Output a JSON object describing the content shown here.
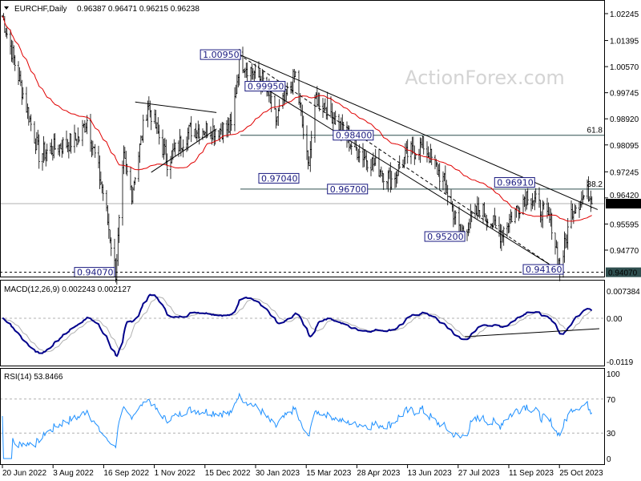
{
  "header": {
    "symbol": "EURCHF,Daily",
    "ohlc": "0.96387 0.96471 0.96215 0.96238"
  },
  "watermark": "ActionForex.com",
  "chart_data": {
    "type": "candlestick-ohlc-bars",
    "symbol": "EURCHF",
    "timeframe": "Daily",
    "last": {
      "open": 0.96387,
      "high": 0.96471,
      "low": 0.96215,
      "close": 0.96238
    },
    "price_axis_ticks": [
      "1.02245",
      "1.01395",
      "1.00570",
      "0.99745",
      "0.98920",
      "0.98095",
      "0.97245",
      "0.96420",
      "0.95595",
      "0.94770"
    ],
    "current_price_label": "0.96238",
    "support_price_label": "0.94070",
    "time_axis_ticks": [
      "20 Jun 2022",
      "3 Aug 2022",
      "16 Sep 2022",
      "1 Nov 2022",
      "15 Dec 2022",
      "30 Jan 2023",
      "15 Mar 2023",
      "28 Apr 2023",
      "13 Jun 2023",
      "27 Jul 2023",
      "11 Sep 2023",
      "25 Oct 2023"
    ],
    "price_path": [
      [
        "2022-06-20",
        1.0217
      ],
      [
        "2022-07-22",
        0.978
      ],
      [
        "2022-08-26",
        0.983
      ],
      [
        "2022-09-02",
        0.989
      ],
      [
        "2022-09-16",
        0.966
      ],
      [
        "2022-09-27",
        0.9407
      ],
      [
        "2022-10-04",
        0.976
      ],
      [
        "2022-10-11",
        0.966
      ],
      [
        "2022-10-25",
        0.994
      ],
      [
        "2022-11-11",
        0.976
      ],
      [
        "2022-12-02",
        0.986
      ],
      [
        "2023-01-06",
        0.986
      ],
      [
        "2023-01-13",
        1.008
      ],
      [
        "2023-02-03",
        1.001
      ],
      [
        "2023-02-14",
        0.989
      ],
      [
        "2023-03-03",
        1.003
      ],
      [
        "2023-03-14",
        0.974
      ],
      [
        "2023-03-21",
        0.996
      ],
      [
        "2023-03-31",
        0.993
      ],
      [
        "2023-04-21",
        0.981
      ],
      [
        "2023-05-26",
        0.97
      ],
      [
        "2023-06-09",
        0.978
      ],
      [
        "2023-06-23",
        0.981
      ],
      [
        "2023-07-11",
        0.969
      ],
      [
        "2023-07-25",
        0.953
      ],
      [
        "2023-08-11",
        0.961
      ],
      [
        "2023-08-29",
        0.953
      ],
      [
        "2023-09-22",
        0.966
      ],
      [
        "2023-10-13",
        0.956
      ],
      [
        "2023-10-20",
        0.9416
      ],
      [
        "2023-10-31",
        0.961
      ],
      [
        "2023-11-14",
        0.966
      ],
      [
        "2023-11-17",
        0.96238
      ]
    ],
    "moving_average": {
      "color": "#e00000"
    },
    "annotations": [
      {
        "text": "1.00950",
        "date": "2022-12-10",
        "price": 1.0095
      },
      {
        "text": "0.99950",
        "date": "2023-01-18",
        "price": 0.9995
      },
      {
        "text": "0.97040",
        "date": "2023-01-30",
        "price": 0.9704
      },
      {
        "text": "0.96700",
        "date": "2023-03-31",
        "price": 0.967
      },
      {
        "text": "0.98400",
        "date": "2023-04-05",
        "price": 0.984
      },
      {
        "text": "0.96910",
        "date": "2023-08-24",
        "price": 0.9691
      },
      {
        "text": "0.95200",
        "date": "2023-06-24",
        "price": 0.952
      },
      {
        "text": "0.94160",
        "date": "2023-09-18",
        "price": 0.9416
      },
      {
        "text": "0.94070",
        "date": "2022-08-22",
        "price": 0.9407
      }
    ],
    "fib_levels": [
      {
        "label": "61.8",
        "price": 0.984
      },
      {
        "label": "38.2",
        "price": 0.967
      }
    ],
    "support_level": 0.9407,
    "macd": {
      "label": "MACD(12,26,9) 0.002243 0.002127",
      "ticks": [
        "0.007384",
        "0.00",
        "-0.0119"
      ],
      "main_color": "#00008b",
      "signal_color": "#b0b0b0"
    },
    "rsi": {
      "label": "RSI(14) 53.8466",
      "ticks": [
        "100",
        "70",
        "30",
        "0"
      ],
      "color": "#1e90ff"
    }
  }
}
